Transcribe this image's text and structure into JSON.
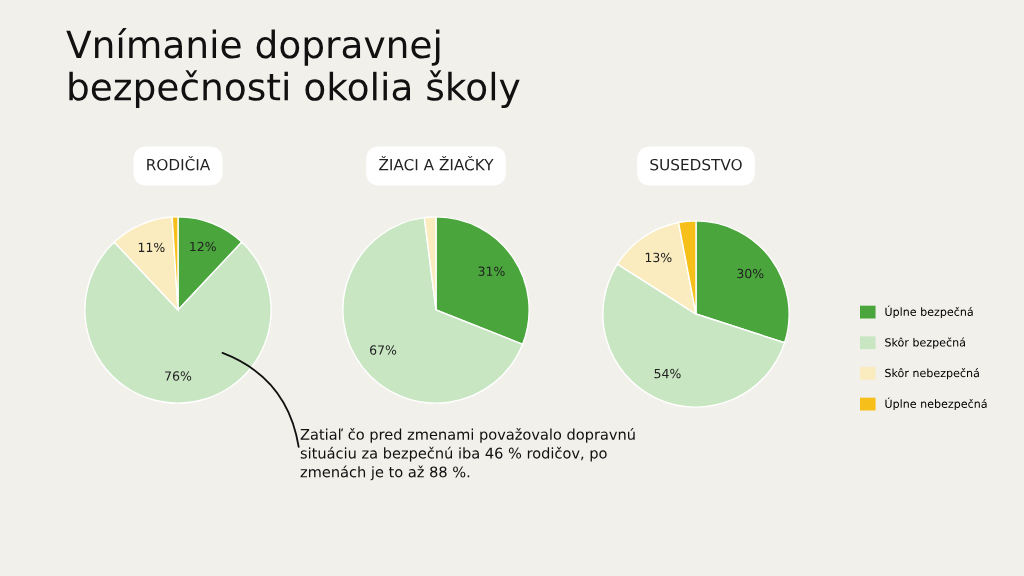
{
  "chart_data": [
    {
      "type": "pie",
      "title": "Vnímanie dopravnej\nbezpečnosti okolia školy",
      "subtitle": "RODIČIA",
      "categories": [
        "Úplne bezpečná",
        "Skôr bezpečná",
        "Skôr nebezpečná",
        "Úplne nebezpečná"
      ],
      "values": [
        12,
        76,
        11,
        1
      ],
      "colors": [
        "#4aa63c",
        "#c9e6c3",
        "#fbecc0",
        "#f7bf1a"
      ],
      "value_labels": [
        "12%",
        "76%",
        "11%",
        null
      ],
      "annotations": [
        "Zatiaľ čo pred zmenami považovalo dopravnú\nsituáciu za bezpečnú iba 46 % rodičov, po\nzmenách je to až 88 %."
      ],
      "legend": "right"
    },
    {
      "type": "pie",
      "subtitle": "ŽIACI A ŽIAČKY",
      "categories": [
        null,
        null,
        null
      ],
      "values": [
        31,
        67,
        2
      ],
      "colors": [
        "#4aa63c",
        "#c9e6c3",
        "#fbecc0"
      ],
      "value_labels": [
        "31%",
        "67%",
        null
      ],
      "legend": false
    },
    {
      "type": "pie",
      "subtitle": "SUSEDSTVO",
      "categories": [
        null,
        null,
        null,
        null
      ],
      "values": [
        30,
        54,
        13,
        3
      ],
      "colors": [
        "#4aa63c",
        "#c9e6c3",
        "#fbecc0",
        "#f7bf1a"
      ],
      "value_labels": [
        "30%",
        "54%",
        "13%",
        null
      ],
      "legend": false
    }
  ]
}
